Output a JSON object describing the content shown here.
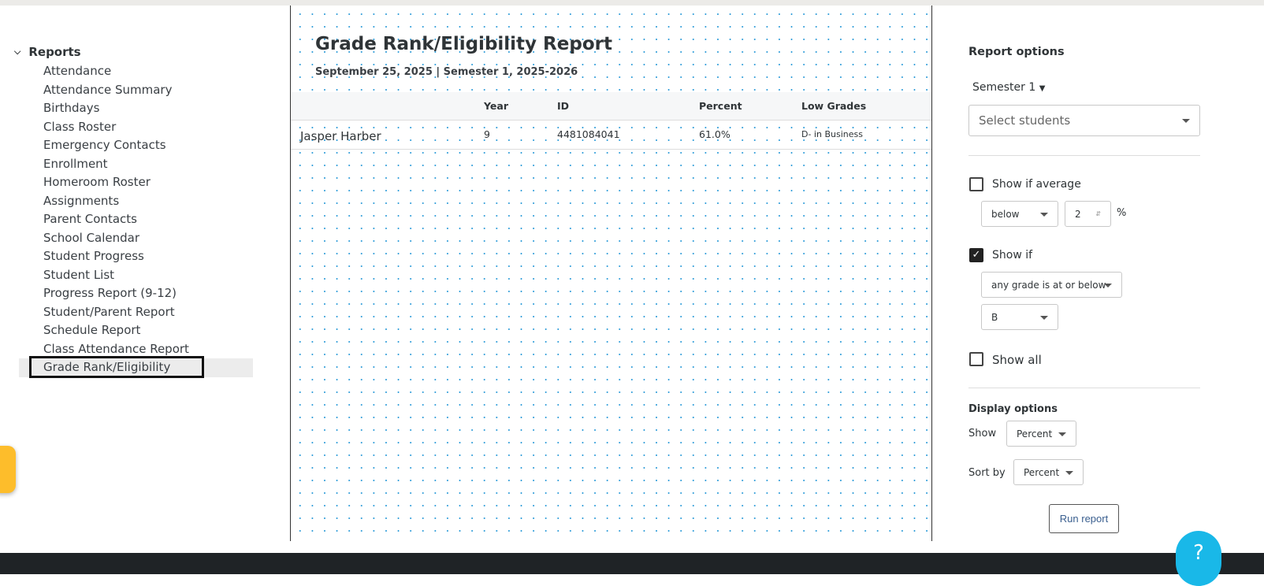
{
  "sidebar": {
    "section": "Reports",
    "items": [
      "Attendance",
      "Attendance Summary",
      "Birthdays",
      "Class Roster",
      "Emergency Contacts",
      "Enrollment",
      "Homeroom Roster",
      "Assignments",
      "Parent Contacts",
      "School Calendar",
      "Student Progress",
      "Student List",
      "Progress Report (9-12)",
      "Student/Parent Report",
      "Schedule Report",
      "Class Attendance Report",
      "Grade Rank/Eligibility"
    ],
    "active": "Grade Rank/Eligibility"
  },
  "report": {
    "title": "Grade Rank/Eligibility Report",
    "subtitle": "September 25, 2025 | Semester 1, 2025-2026",
    "columns": [
      "",
      "Year",
      "ID",
      "Percent",
      "Low Grades"
    ],
    "rows": [
      {
        "name": "Jasper Harber",
        "year": "9",
        "id": "4481084041",
        "percent": "61.0%",
        "low_grades": "D- in Business"
      }
    ]
  },
  "options": {
    "heading": "Report options",
    "semester": "Semester 1",
    "students_placeholder": "Select students",
    "show_if_average": {
      "label": "Show if average",
      "checked": false,
      "comparator": "below",
      "value": "2",
      "unit": "%"
    },
    "show_if": {
      "label": "Show if",
      "checked": true,
      "condition": "any grade is at or below",
      "grade": "B"
    },
    "show_all": {
      "label": "Show all",
      "checked": false
    },
    "display_heading": "Display options",
    "show_label": "Show",
    "show_value": "Percent",
    "sort_label": "Sort by",
    "sort_value": "Percent",
    "run": "Run report"
  },
  "help": "?"
}
